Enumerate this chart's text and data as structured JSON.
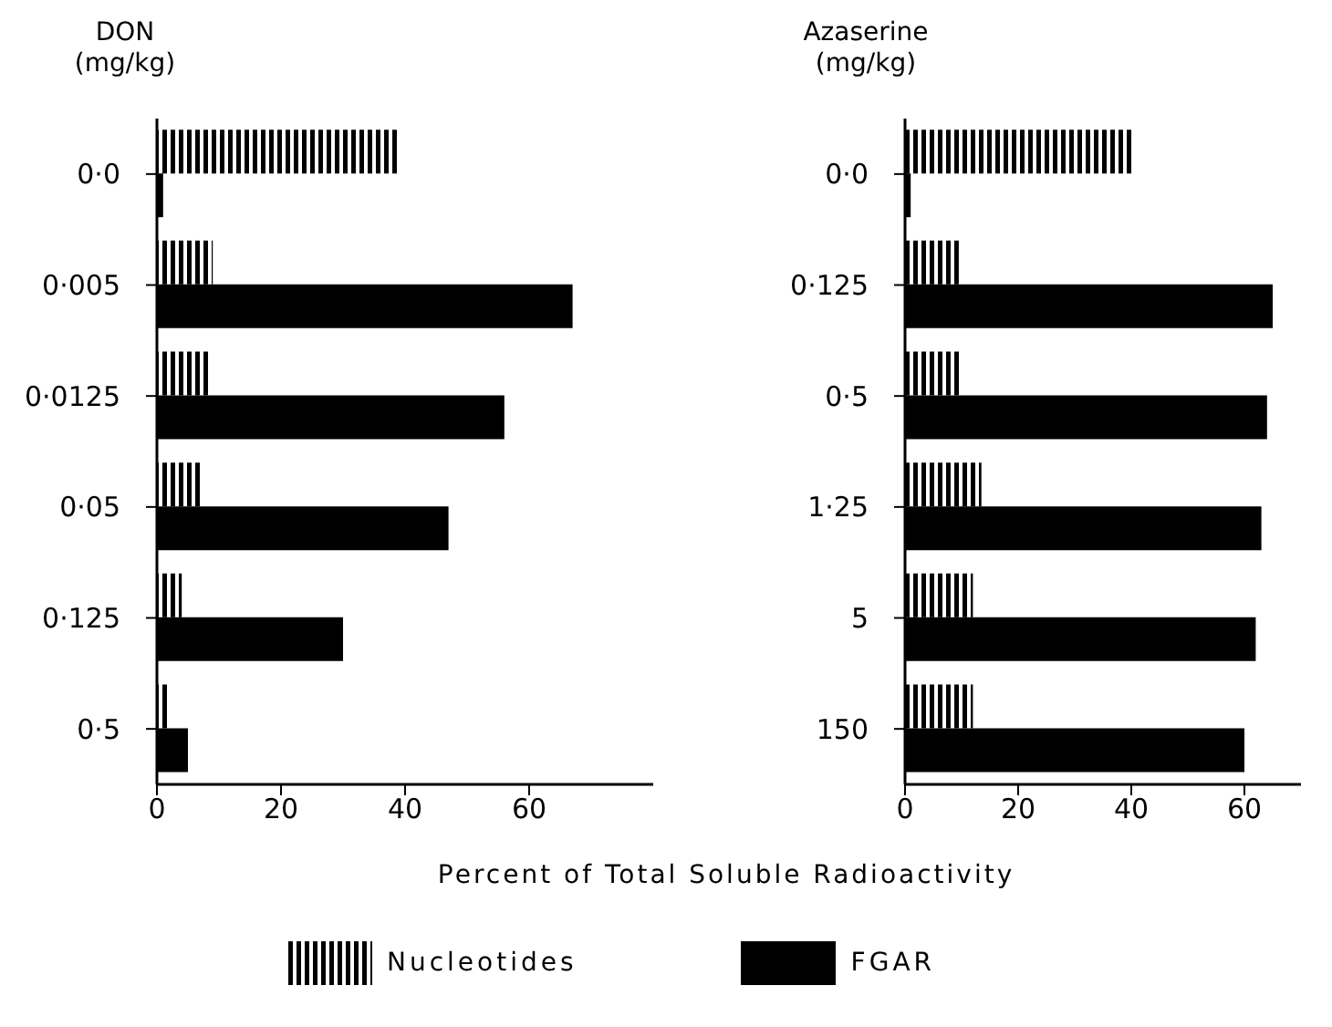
{
  "chart_data": [
    {
      "type": "bar",
      "orientation": "horizontal",
      "ylabel": "DON (mg/kg)",
      "xlabel": "Percent of Total Soluble Radioactivity",
      "categories": [
        "0·0",
        "0·005",
        "0·0125",
        "0·05",
        "0·125",
        "0·5"
      ],
      "series": [
        {
          "name": "Nucleotides",
          "color": "#000000",
          "values": [
            39,
            9,
            8.5,
            7.5,
            4,
            2
          ]
        },
        {
          "name": "FGAR",
          "color": "#000000",
          "values": [
            1,
            67,
            56,
            47,
            30,
            5
          ]
        }
      ],
      "xlim": [
        0,
        80
      ],
      "xticks": [
        0,
        20,
        40,
        60
      ],
      "grid": false,
      "legend": "bottom"
    },
    {
      "type": "bar",
      "orientation": "horizontal",
      "ylabel": "Azaserine (mg/kg)",
      "categories": [
        "0·0",
        "0·125",
        "0·5",
        "1·25",
        "5",
        "150"
      ],
      "series": [
        {
          "color": "#000000",
          "values": [
            40,
            9.5,
            10,
            13.5,
            12,
            12
          ]
        },
        {
          "color": "#000000",
          "values": [
            1,
            65,
            64,
            63,
            62,
            60
          ]
        }
      ],
      "xlim": [
        0,
        70
      ],
      "xticks": [
        0,
        20,
        40,
        60
      ],
      "grid": false
    }
  ]
}
